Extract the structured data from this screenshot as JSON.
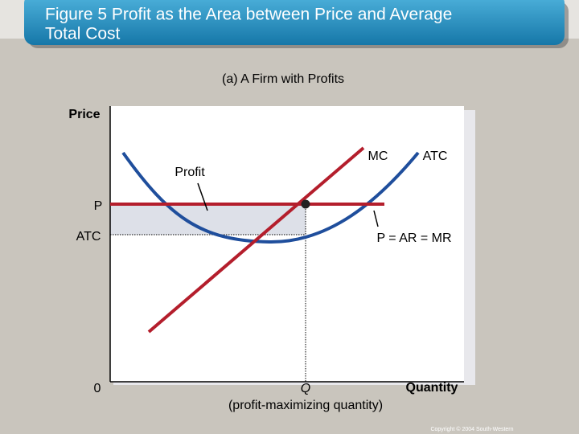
{
  "header": {
    "title_line1": "Figure 5 Profit as the Area between Price and Average",
    "title_line2": "Total Cost"
  },
  "diagram": {
    "subtitle": "(a) A Firm with Profits",
    "y_axis_label": "Price",
    "x_axis_label": "Quantity",
    "origin": "0",
    "price_label": "P",
    "atc_level_label": "ATC",
    "quantity_label": "Q",
    "quantity_note": "(profit-maximizing quantity)",
    "profit_label": "Profit",
    "mc_label": "MC",
    "atc_curve_label": "ATC",
    "demand_label": "P = AR = MR"
  },
  "footer": {
    "copyright": "Copyright © 2004 South-Western"
  }
}
